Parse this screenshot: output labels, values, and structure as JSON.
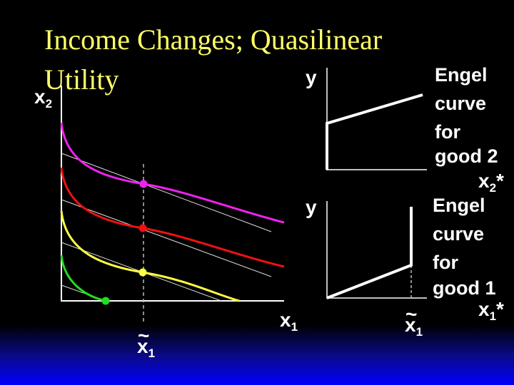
{
  "title": "Income Changes; Quasilinear Utility",
  "left_panel": {
    "y_axis_label": {
      "symbol": "x",
      "subscript": "2"
    },
    "x_axis_label": {
      "symbol": "x",
      "subscript": "1"
    },
    "marker_label": {
      "accent": "~",
      "symbol": "x",
      "subscript": "1"
    }
  },
  "top_right_panel": {
    "y_axis_label": "y",
    "x_axis_label": {
      "symbol": "x",
      "subscript": "2",
      "suffix": "*"
    },
    "caption": [
      "Engel",
      "curve",
      "for",
      "good 2"
    ]
  },
  "bottom_right_panel": {
    "y_axis_label": "y",
    "x_axis_label": {
      "symbol": "x",
      "subscript": "1",
      "suffix": "*"
    },
    "marker_label": {
      "accent": "~",
      "symbol": "x",
      "subscript": "1"
    },
    "caption": [
      "Engel",
      "curve",
      "for",
      "good 1"
    ]
  }
}
